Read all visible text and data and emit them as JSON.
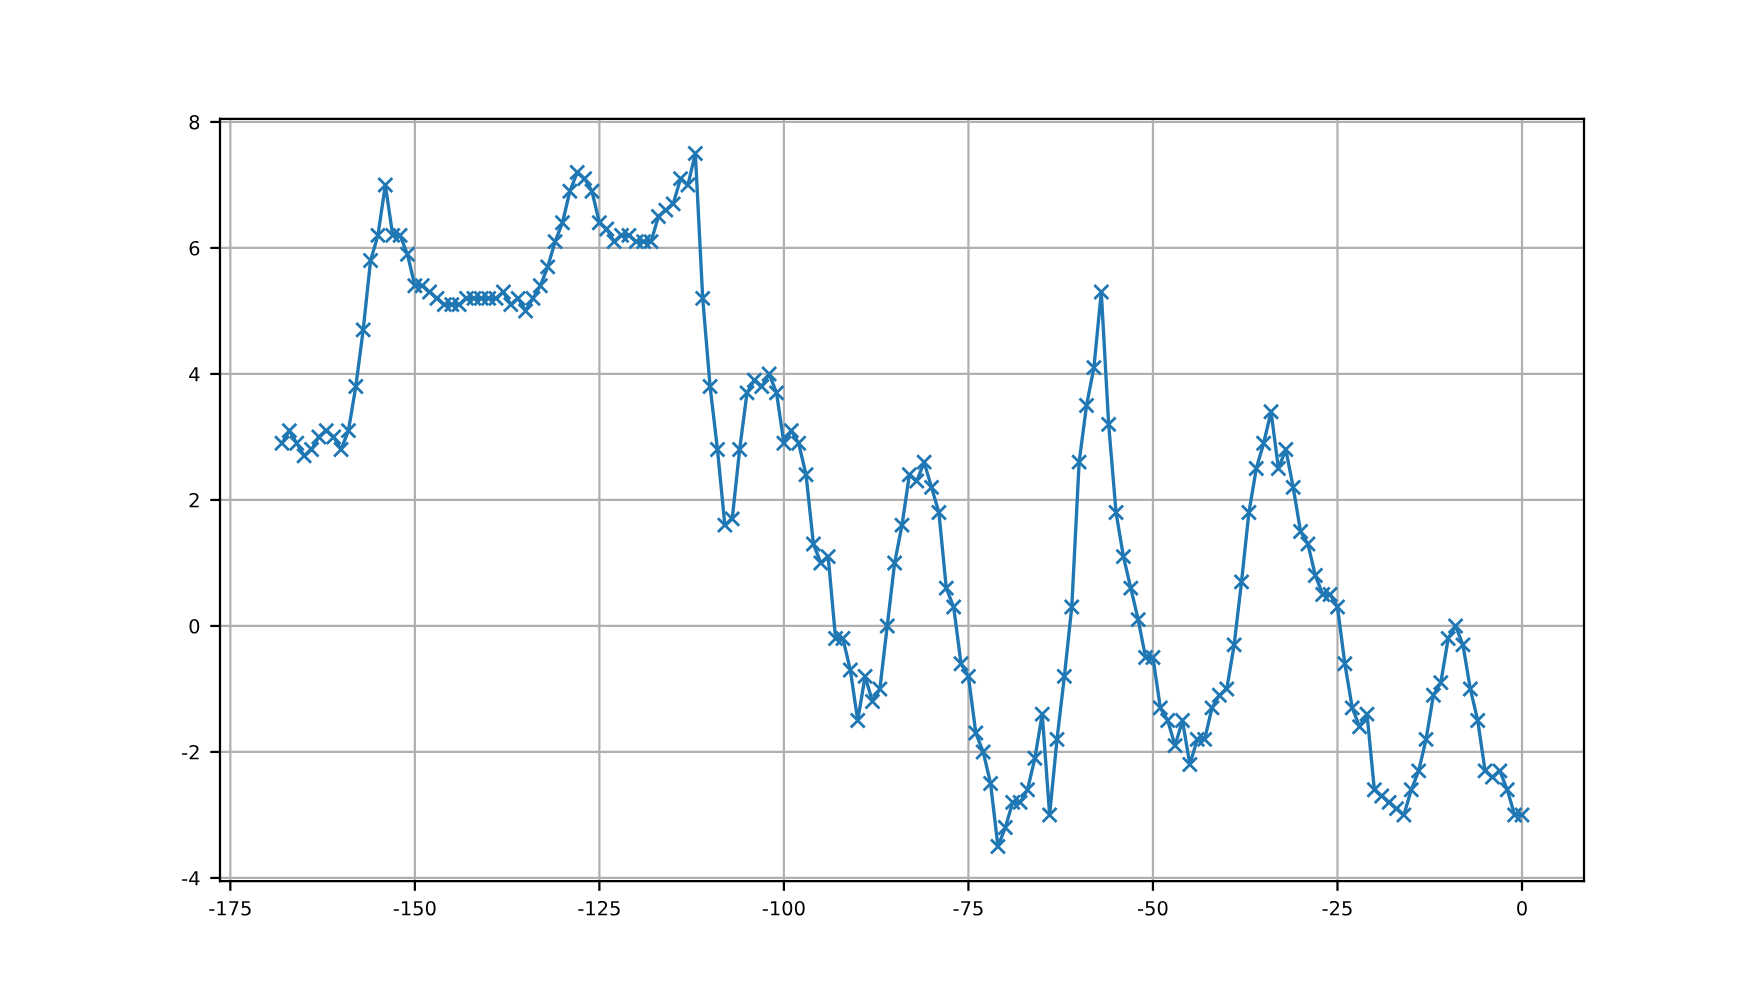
{
  "chart_data": {
    "type": "line",
    "x": [
      -168,
      -167,
      -166,
      -165,
      -164,
      -163,
      -162,
      -161,
      -160,
      -159,
      -158,
      -157,
      -156,
      -155,
      -154,
      -153,
      -152,
      -151,
      -150,
      -149,
      -148,
      -147,
      -146,
      -145,
      -144,
      -143,
      -142,
      -141,
      -140,
      -139,
      -138,
      -137,
      -136,
      -135,
      -134,
      -133,
      -132,
      -131,
      -130,
      -129,
      -128,
      -127,
      -126,
      -125,
      -124,
      -123,
      -122,
      -121,
      -120,
      -119,
      -118,
      -117,
      -116,
      -115,
      -114,
      -113,
      -112,
      -111,
      -110,
      -109,
      -108,
      -107,
      -106,
      -105,
      -104,
      -103,
      -102,
      -101,
      -100,
      -99,
      -98,
      -97,
      -96,
      -95,
      -94,
      -93,
      -92,
      -91,
      -90,
      -89,
      -88,
      -87,
      -86,
      -85,
      -84,
      -83,
      -82,
      -81,
      -80,
      -79,
      -78,
      -77,
      -76,
      -75,
      -74,
      -73,
      -72,
      -71,
      -70,
      -69,
      -68,
      -67,
      -66,
      -65,
      -64,
      -63,
      -62,
      -61,
      -60,
      -59,
      -58,
      -57,
      -56,
      -55,
      -54,
      -53,
      -52,
      -51,
      -50,
      -49,
      -48,
      -47,
      -46,
      -45,
      -44,
      -43,
      -42,
      -41,
      -40,
      -39,
      -38,
      -37,
      -36,
      -35,
      -34,
      -33,
      -32,
      -31,
      -30,
      -29,
      -28,
      -27,
      -26,
      -25,
      -24,
      -23,
      -22,
      -21,
      -20,
      -19,
      -18,
      -17,
      -16,
      -15,
      -14,
      -13,
      -12,
      -11,
      -10,
      -9,
      -8,
      -7,
      -6,
      -5,
      -4,
      -3,
      -2,
      -1,
      0
    ],
    "series": [
      {
        "color": "#1f77b4",
        "values": [
          2.9,
          3.1,
          2.9,
          2.7,
          2.8,
          3.0,
          3.1,
          3.0,
          2.8,
          3.1,
          3.8,
          4.7,
          5.8,
          6.2,
          7.0,
          6.2,
          6.2,
          5.9,
          5.4,
          5.4,
          5.3,
          5.2,
          5.1,
          5.1,
          5.1,
          5.2,
          5.2,
          5.2,
          5.2,
          5.2,
          5.3,
          5.1,
          5.2,
          5.0,
          5.2,
          5.4,
          5.7,
          6.1,
          6.4,
          6.9,
          7.2,
          7.1,
          6.9,
          6.4,
          6.3,
          6.1,
          6.2,
          6.2,
          6.1,
          6.1,
          6.1,
          6.5,
          6.6,
          6.7,
          7.1,
          7.0,
          7.5,
          5.2,
          3.8,
          2.8,
          1.6,
          1.7,
          2.8,
          3.7,
          3.9,
          3.8,
          4.0,
          3.7,
          2.9,
          3.1,
          2.9,
          2.4,
          1.3,
          1.0,
          1.1,
          -0.2,
          -0.2,
          -0.7,
          -1.5,
          -0.8,
          -1.2,
          -1.0,
          0.0,
          1.0,
          1.6,
          2.4,
          2.3,
          2.6,
          2.2,
          1.8,
          0.6,
          0.3,
          -0.6,
          -0.8,
          -1.7,
          -2.0,
          -2.5,
          -3.5,
          -3.2,
          -2.8,
          -2.8,
          -2.6,
          -2.1,
          -1.4,
          -3.0,
          -1.8,
          -0.8,
          0.3,
          2.6,
          3.5,
          4.1,
          5.3,
          3.2,
          1.8,
          1.1,
          0.6,
          0.1,
          -0.5,
          -0.5,
          -1.3,
          -1.5,
          -1.9,
          -1.5,
          -2.2,
          -1.8,
          -1.8,
          -1.3,
          -1.1,
          -1.0,
          -0.3,
          0.7,
          1.8,
          2.5,
          2.9,
          3.4,
          2.5,
          2.8,
          2.2,
          1.5,
          1.3,
          0.8,
          0.5,
          0.5,
          0.3,
          -0.6,
          -1.3,
          -1.6,
          -1.4,
          -2.6,
          -2.7,
          -2.8,
          -2.9,
          -3.0,
          -2.6,
          -2.3,
          -1.8,
          -1.1,
          -0.9,
          -0.2,
          0.0,
          -0.3,
          -1.0,
          -1.5,
          -2.3,
          -2.4,
          -2.3,
          -2.6,
          -3.0,
          -3.0
        ]
      }
    ],
    "xlim": [
      -176.4,
      8.4
    ],
    "xticks": [
      -175,
      -150,
      -125,
      -100,
      -75,
      -50,
      -25,
      0
    ],
    "ylim": [
      -4.05,
      8.05
    ],
    "yticks": [
      -4,
      -2,
      0,
      2,
      4,
      6,
      8
    ],
    "grid": true,
    "marker": "cross",
    "line_style": "solid"
  }
}
